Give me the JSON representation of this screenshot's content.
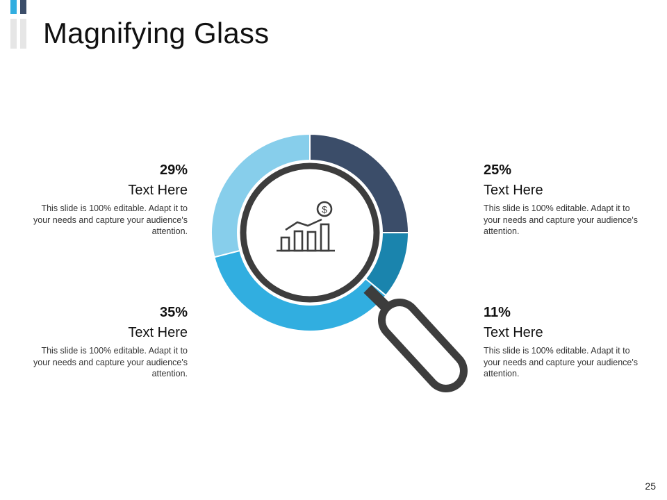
{
  "slide": {
    "title": "Magnifying Glass",
    "page_number": "25"
  },
  "colors": {
    "accent_light_blue": "#87ceeb",
    "accent_sky_blue": "#31aee0",
    "accent_teal_blue": "#1a84ad",
    "accent_navy": "#3b4d69",
    "glass_stroke": "#3d3d3d"
  },
  "chart_data": {
    "type": "pie",
    "variant": "donut",
    "start_angle_deg": 0,
    "direction": "clockwise",
    "slices": [
      {
        "value": 25,
        "label": "25%",
        "color": "#3b4d69"
      },
      {
        "value": 11,
        "label": "11%",
        "color": "#1a84ad"
      },
      {
        "value": 35,
        "label": "35%",
        "color": "#31aee0"
      },
      {
        "value": 29,
        "label": "29%",
        "color": "#87ceeb"
      }
    ]
  },
  "callouts": {
    "top_left": {
      "percent": "29%",
      "heading": "Text Here",
      "body": "This slide is 100% editable. Adapt it to your needs and capture your audience's attention."
    },
    "top_right": {
      "percent": "25%",
      "heading": "Text Here",
      "body": "This slide is 100% editable. Adapt it to your needs and capture your audience's attention."
    },
    "bottom_left": {
      "percent": "35%",
      "heading": "Text Here",
      "body": "This slide is 100% editable. Adapt it to your needs and capture your audience's attention."
    },
    "bottom_right": {
      "percent": "11%",
      "heading": "Text Here",
      "body": "This slide is 100% editable. Adapt it to your needs and capture your audience's attention."
    }
  },
  "icons": {
    "center": "growth-chart-dollar-icon",
    "device": "magnifying-glass-icon"
  }
}
